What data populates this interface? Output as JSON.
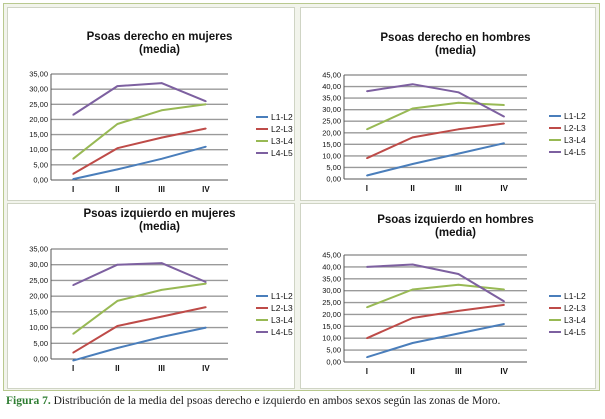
{
  "colors": {
    "L1-L2": "#4a7ebb",
    "L2-L3": "#be4b48",
    "L3-L4": "#98b954",
    "L4-L5": "#7d60a0"
  },
  "caption": {
    "label": "Figura 7.",
    "text": " Distribución de la media del psoas derecho e izquierdo en ambos sexos según las zonas de Moro."
  },
  "chart_data": [
    {
      "type": "line",
      "title_line1": "Psoas derecho en mujeres",
      "title_line2": "(media)",
      "categories": [
        "I",
        "II",
        "III",
        "IV"
      ],
      "ylim": [
        0,
        35
      ],
      "ytick_step": 5,
      "yticks": [
        "0,00",
        "5,00",
        "10,00",
        "15,00",
        "20,00",
        "25,00",
        "30,00",
        "35,00"
      ],
      "grid": true,
      "legend": "right",
      "series": [
        {
          "name": "L1-L2",
          "values": [
            0.3,
            3.5,
            7.0,
            11.0
          ]
        },
        {
          "name": "L2-L3",
          "values": [
            2.0,
            10.5,
            14.0,
            17.0
          ]
        },
        {
          "name": "L3-L4",
          "values": [
            7.0,
            18.5,
            23.0,
            25.0
          ]
        },
        {
          "name": "L4-L5",
          "values": [
            21.5,
            31.0,
            32.0,
            26.0
          ]
        }
      ]
    },
    {
      "type": "line",
      "title_line1": "Psoas derecho en hombres",
      "title_line2": "(media)",
      "categories": [
        "I",
        "II",
        "III",
        "IV"
      ],
      "ylim": [
        0,
        45
      ],
      "ytick_step": 5,
      "yticks": [
        "0,00",
        "5,00",
        "10,00",
        "15,00",
        "20,00",
        "25,00",
        "30,00",
        "35,00",
        "40,00",
        "45,00"
      ],
      "grid": true,
      "legend": "right",
      "series": [
        {
          "name": "L1-L2",
          "values": [
            1.5,
            6.5,
            11.0,
            15.5
          ]
        },
        {
          "name": "L2-L3",
          "values": [
            9.0,
            18.0,
            21.5,
            24.0
          ]
        },
        {
          "name": "L3-L4",
          "values": [
            21.5,
            30.5,
            33.0,
            32.0
          ]
        },
        {
          "name": "L4-L5",
          "values": [
            38.0,
            41.0,
            37.5,
            27.0
          ]
        }
      ]
    },
    {
      "type": "line",
      "title_line1": "Psoas izquierdo en mujeres",
      "title_line2": "(media)",
      "categories": [
        "I",
        "II",
        "III",
        "IV"
      ],
      "ylim": [
        0,
        35
      ],
      "ytick_step": 5,
      "yticks": [
        "0,00",
        "5,00",
        "10,00",
        "15,00",
        "20,00",
        "25,00",
        "30,00",
        "35,00"
      ],
      "grid": true,
      "legend": "right",
      "series": [
        {
          "name": "L1-L2",
          "values": [
            -0.5,
            3.5,
            7.0,
            10.0
          ]
        },
        {
          "name": "L2-L3",
          "values": [
            2.0,
            10.5,
            13.5,
            16.5
          ]
        },
        {
          "name": "L3-L4",
          "values": [
            8.0,
            18.5,
            22.0,
            24.0
          ]
        },
        {
          "name": "L4-L5",
          "values": [
            23.5,
            30.0,
            30.5,
            24.5
          ]
        }
      ]
    },
    {
      "type": "line",
      "title_line1": "Psoas izquierdo en hombres",
      "title_line2": "(media)",
      "categories": [
        "I",
        "II",
        "III",
        "IV"
      ],
      "ylim": [
        0,
        45
      ],
      "ytick_step": 5,
      "yticks": [
        "0,00",
        "5,00",
        "10,00",
        "15,00",
        "20,00",
        "25,00",
        "30,00",
        "35,00",
        "40,00",
        "45,00"
      ],
      "grid": true,
      "legend": "right",
      "series": [
        {
          "name": "L1-L2",
          "values": [
            2.0,
            8.0,
            12.0,
            16.0
          ]
        },
        {
          "name": "L2-L3",
          "values": [
            10.0,
            18.5,
            21.5,
            24.0
          ]
        },
        {
          "name": "L3-L4",
          "values": [
            23.0,
            30.5,
            32.5,
            30.5
          ]
        },
        {
          "name": "L4-L5",
          "values": [
            40.0,
            41.0,
            37.0,
            25.5
          ]
        }
      ]
    }
  ]
}
